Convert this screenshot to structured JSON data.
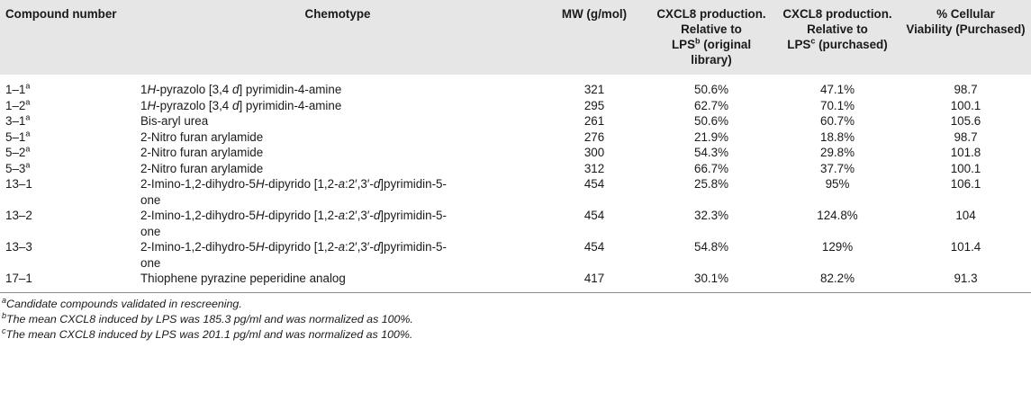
{
  "table": {
    "headers": [
      {
        "text": "Compound number",
        "sup": ""
      },
      {
        "text": "Chemotype",
        "sup": ""
      },
      {
        "text": "MW (g/mol)",
        "sup": ""
      },
      {
        "text_line1": "CXCL8 production.",
        "text_line2": "Relative to",
        "text_line3_pre": "LPS",
        "sup": "b",
        "text_line3_post": " (original",
        "text_line4": "library)"
      },
      {
        "text_line1": "CXCL8 production.",
        "text_line2": "Relative to",
        "text_line3_pre": "LPS",
        "sup": "c",
        "text_line3_post": " (purchased)"
      },
      {
        "text_line1": "% Cellular",
        "text_line2": "Viability (Purchased)"
      }
    ],
    "rows": [
      {
        "compound": "1–1",
        "sup": "a",
        "chemo_pre": "1",
        "chemo_ital": "H",
        "chemo_mid": "-pyrazolo [3,4 ",
        "chemo_ital2": "d",
        "chemo_post": "] pyrimidin-4-amine",
        "chemo_line2": "",
        "mw": "321",
        "orig": "50.6%",
        "purch": "47.1%",
        "via": "98.7"
      },
      {
        "compound": "1–2",
        "sup": "a",
        "chemo_pre": "1",
        "chemo_ital": "H",
        "chemo_mid": "-pyrazolo [3,4 ",
        "chemo_ital2": "d",
        "chemo_post": "] pyrimidin-4-amine",
        "chemo_line2": "",
        "mw": "295",
        "orig": "62.7%",
        "purch": "70.1%",
        "via": "100.1"
      },
      {
        "compound": "3–1",
        "sup": "a",
        "chemo_pre": "Bis-aryl urea",
        "chemo_ital": "",
        "chemo_mid": "",
        "chemo_ital2": "",
        "chemo_post": "",
        "chemo_line2": "",
        "mw": "261",
        "orig": "50.6%",
        "purch": "60.7%",
        "via": "105.6"
      },
      {
        "compound": "5–1",
        "sup": "a",
        "chemo_pre": "2-Nitro furan arylamide",
        "chemo_ital": "",
        "chemo_mid": "",
        "chemo_ital2": "",
        "chemo_post": "",
        "chemo_line2": "",
        "mw": "276",
        "orig": "21.9%",
        "purch": "18.8%",
        "via": "98.7"
      },
      {
        "compound": "5–2",
        "sup": "a",
        "chemo_pre": "2-Nitro furan arylamide",
        "chemo_ital": "",
        "chemo_mid": "",
        "chemo_ital2": "",
        "chemo_post": "",
        "chemo_line2": "",
        "mw": "300",
        "orig": "54.3%",
        "purch": "29.8%",
        "via": "101.8"
      },
      {
        "compound": "5–3",
        "sup": "a",
        "chemo_pre": "2-Nitro furan arylamide",
        "chemo_ital": "",
        "chemo_mid": "",
        "chemo_ital2": "",
        "chemo_post": "",
        "chemo_line2": "",
        "mw": "312",
        "orig": "66.7%",
        "purch": "37.7%",
        "via": "100.1"
      },
      {
        "compound": "13–1",
        "sup": "",
        "chemo_pre": "2-Imino-1,2-dihydro-5",
        "chemo_ital": "H",
        "chemo_mid": "-dipyrido [1,2-",
        "chemo_ital2": "a",
        "chemo_post": ":2′,3′-",
        "chemo_ital3": "d",
        "chemo_post2": "]pyrimidin-5-",
        "chemo_line2": "one",
        "mw": "454",
        "orig": "25.8%",
        "purch": "95%",
        "via": "106.1"
      },
      {
        "compound": "13–2",
        "sup": "",
        "chemo_pre": "2-Imino-1,2-dihydro-5",
        "chemo_ital": "H",
        "chemo_mid": "-dipyrido [1,2-",
        "chemo_ital2": "a",
        "chemo_post": ":2′,3′-",
        "chemo_ital3": "d",
        "chemo_post2": "]pyrimidin-5-",
        "chemo_line2": "one",
        "mw": "454",
        "orig": "32.3%",
        "purch": "124.8%",
        "via": "104"
      },
      {
        "compound": "13–3",
        "sup": "",
        "chemo_pre": "2-Imino-1,2-dihydro-5",
        "chemo_ital": "H",
        "chemo_mid": "-dipyrido [1,2-",
        "chemo_ital2": "a",
        "chemo_post": ":2′,3′-",
        "chemo_ital3": "d",
        "chemo_post2": "]pyrimidin-5-",
        "chemo_line2": "one",
        "mw": "454",
        "orig": "54.8%",
        "purch": "129%",
        "via": "101.4"
      },
      {
        "compound": "17–1",
        "sup": "",
        "chemo_pre": "Thiophene pyrazine peperidine analog",
        "chemo_ital": "",
        "chemo_mid": "",
        "chemo_ital2": "",
        "chemo_post": "",
        "chemo_line2": "",
        "mw": "417",
        "orig": "30.1%",
        "purch": "82.2%",
        "via": "91.3"
      }
    ]
  },
  "footnotes": [
    {
      "mark": "a",
      "text": "Candidate compounds validated in rescreening."
    },
    {
      "mark": "b",
      "text": "The mean CXCL8 induced by LPS was 185.3 pg/ml and was normalized as 100%."
    },
    {
      "mark": "c",
      "text": "The mean CXCL8 induced by LPS was 201.1 pg/ml and was normalized as 100%."
    }
  ]
}
